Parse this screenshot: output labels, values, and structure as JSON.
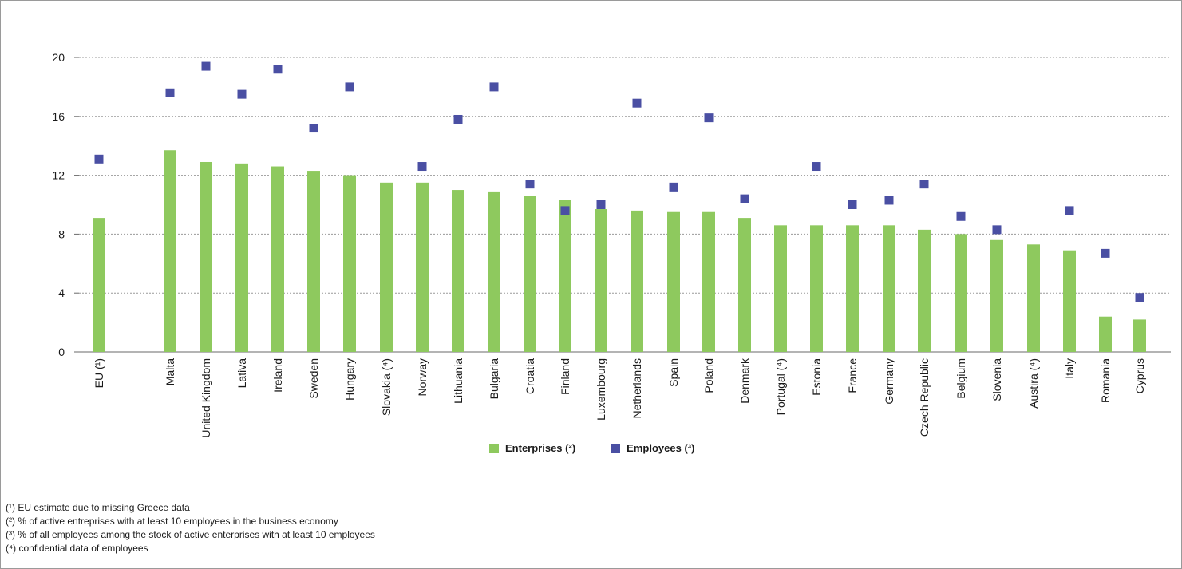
{
  "chart_data": {
    "type": "bar",
    "categories": [
      "EU (¹)",
      "Malta",
      "United Kingdom",
      "Lativa",
      "Ireland",
      "Sweden",
      "Hungary",
      "Slovakia (⁴)",
      "Norway",
      "Lithuania",
      "Bulgaria",
      "Croatia",
      "Finland",
      "Luxembourg",
      "Netherlands",
      "Spain",
      "Poland",
      "Denmark",
      "Portugal (⁴)",
      "Estonia",
      "France",
      "Germany",
      "Czech Republic",
      "Belgium",
      "Slovenia",
      "Austira (⁴)",
      "Italy",
      "Romania",
      "Cyprus"
    ],
    "series": [
      {
        "name": "Enterprises (²)",
        "mark": "bar",
        "color": "#8ec95e",
        "values": [
          9.1,
          13.7,
          12.9,
          12.8,
          12.6,
          12.3,
          12.0,
          11.5,
          11.5,
          11.0,
          10.9,
          10.6,
          10.3,
          9.7,
          9.6,
          9.5,
          9.5,
          9.1,
          8.6,
          8.6,
          8.6,
          8.6,
          8.3,
          8.0,
          7.6,
          7.3,
          6.9,
          2.4,
          2.2
        ]
      },
      {
        "name": "Employees (³)",
        "mark": "square",
        "color": "#4a4fa3",
        "values": [
          13.1,
          17.6,
          19.4,
          17.5,
          19.2,
          15.2,
          18.0,
          null,
          12.6,
          15.8,
          18.0,
          11.4,
          9.6,
          10.0,
          16.9,
          11.2,
          15.9,
          10.4,
          null,
          12.6,
          10.0,
          10.3,
          11.4,
          9.2,
          8.3,
          null,
          9.6,
          6.7,
          3.7
        ]
      }
    ],
    "y_ticks": [
      "0",
      "4",
      "8",
      "12",
      "16",
      "20"
    ],
    "ylim": [
      0,
      22
    ],
    "grid": "horizontal dotted",
    "legend_position": "bottom"
  },
  "legend": {
    "enterprises_label": "Enterprises",
    "enterprises_sup": "(²)",
    "employees_label": "Employees",
    "employees_sup": "(³)"
  },
  "footnotes": [
    {
      "mark": "(¹)",
      "text": " EU estimate due to missing Greece data"
    },
    {
      "mark": "(²)",
      "text": " % of active entreprises with at least 10 employees in the business economy"
    },
    {
      "mark": "(³)",
      "text": " % of all employees among the stock of active enterprises with at least 10 employees"
    },
    {
      "mark": "(⁴)",
      "text": " confidential data of employees"
    }
  ]
}
